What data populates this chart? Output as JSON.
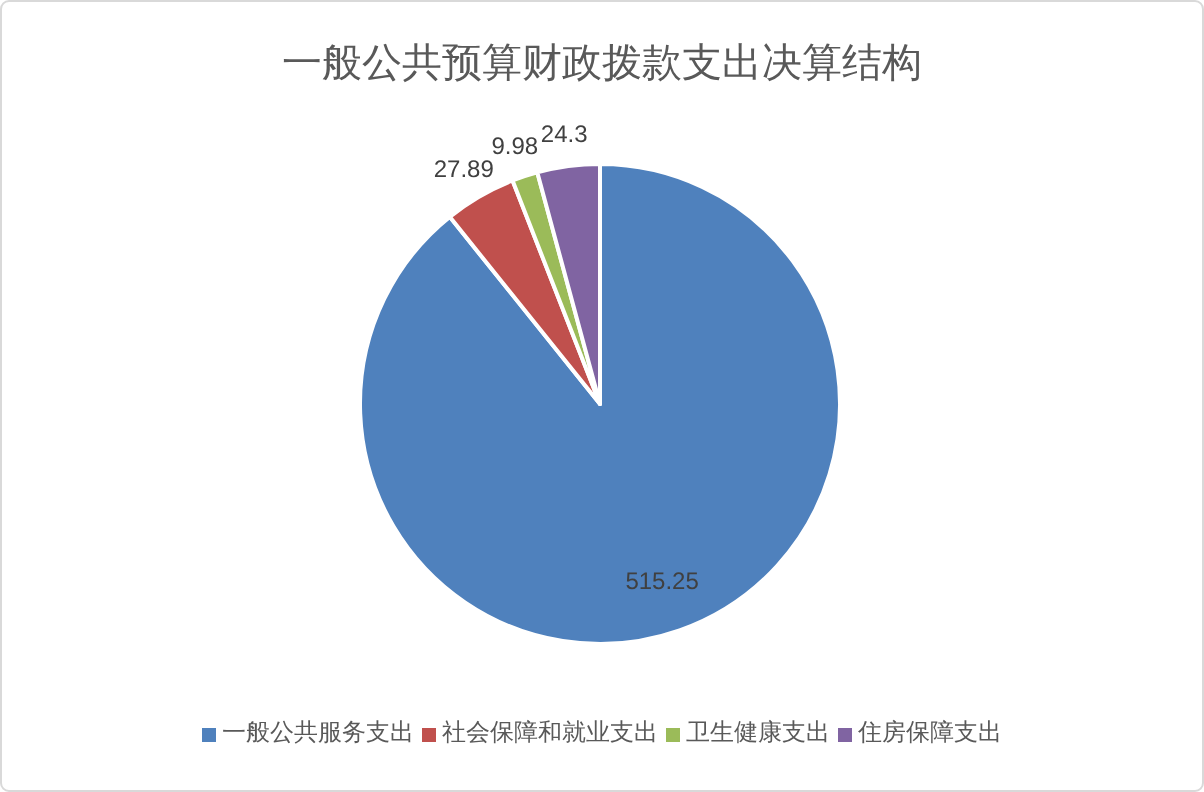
{
  "chart_data": {
    "type": "pie",
    "title": "一般公共预算财政拨款支出决算结构",
    "categories": [
      "一般公共服务支出",
      "社会保障和就业支出",
      "卫生健康支出",
      "住房保障支出"
    ],
    "values": [
      515.25,
      27.89,
      9.98,
      24.3
    ],
    "colors": [
      "#4f81bd",
      "#c0504d",
      "#9bbb59",
      "#8064a2"
    ],
    "data_labels": true,
    "legend": "bottom"
  }
}
